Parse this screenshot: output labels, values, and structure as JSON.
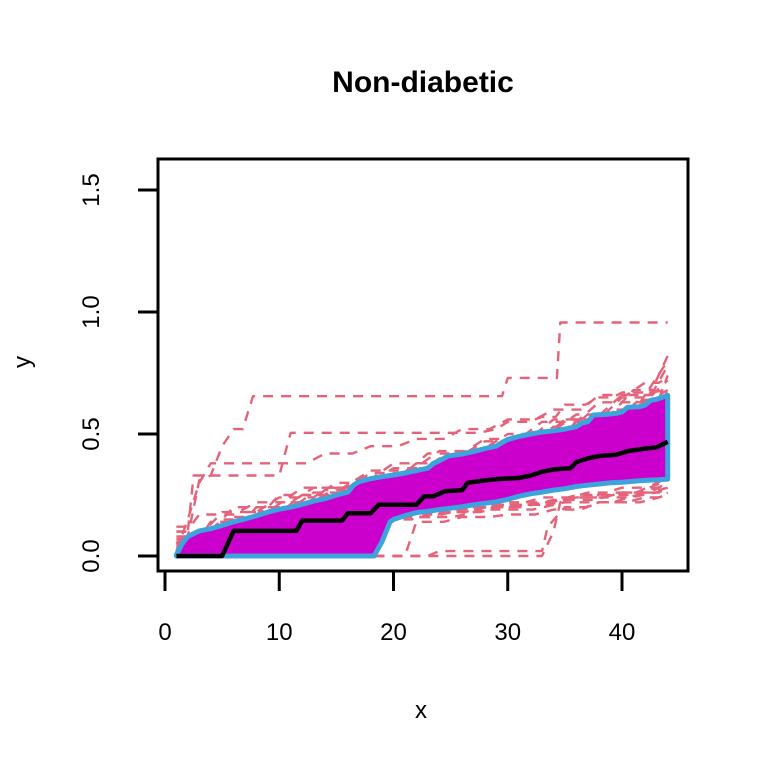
{
  "title": "Non-diabetic",
  "axes": {
    "x": {
      "label": "x",
      "tick_labels": [
        "0",
        "10",
        "20",
        "30",
        "40"
      ]
    },
    "y": {
      "label": "y",
      "tick_labels": [
        "0.0",
        "0.5",
        "1.0",
        "1.5"
      ]
    }
  },
  "colors": {
    "background": "#FFFFFF",
    "axis": "#000000",
    "band_fill": "#CC00CC",
    "band_border": "#3CA3DC",
    "central_curve": "#000000",
    "trajectory": "#E5637A"
  },
  "chart_data": {
    "type": "line",
    "title": "Non-diabetic",
    "xlabel": "x",
    "ylabel": "y",
    "xlim": [
      -0.6,
      45.8
    ],
    "ylim": [
      -0.06,
      1.63
    ],
    "x_ticks": [
      0,
      10,
      20,
      30,
      40
    ],
    "y_ticks": [
      0,
      0.5,
      1.0,
      1.5
    ],
    "x_tick_labels": [
      "0",
      "10",
      "20",
      "30",
      "40"
    ],
    "y_tick_labels": [
      "0.0",
      "0.5",
      "1.0",
      "1.5"
    ],
    "grid": false,
    "legend": "none",
    "band": {
      "label": "central-band",
      "fill": "#CC00CC",
      "border": "#3CA3DC",
      "upper": [
        [
          1,
          0.005
        ],
        [
          1.5,
          0.05
        ],
        [
          2,
          0.08
        ],
        [
          3,
          0.103
        ],
        [
          4,
          0.112
        ],
        [
          5,
          0.125
        ],
        [
          6,
          0.14
        ],
        [
          7,
          0.152
        ],
        [
          8,
          0.165
        ],
        [
          9,
          0.18
        ],
        [
          10,
          0.192
        ],
        [
          11,
          0.2
        ],
        [
          12,
          0.212
        ],
        [
          13,
          0.225
        ],
        [
          14,
          0.235
        ],
        [
          15,
          0.25
        ],
        [
          16,
          0.262
        ],
        [
          16.5,
          0.29
        ],
        [
          17,
          0.305
        ],
        [
          18,
          0.317
        ],
        [
          19,
          0.325
        ],
        [
          20,
          0.332
        ],
        [
          21,
          0.34
        ],
        [
          22,
          0.35
        ],
        [
          23,
          0.36
        ],
        [
          23.5,
          0.38
        ],
        [
          24,
          0.39
        ],
        [
          24.8,
          0.41
        ],
        [
          26,
          0.418
        ],
        [
          27,
          0.428
        ],
        [
          28,
          0.44
        ],
        [
          29,
          0.45
        ],
        [
          29.5,
          0.465
        ],
        [
          30,
          0.478
        ],
        [
          31,
          0.49
        ],
        [
          32,
          0.5
        ],
        [
          33,
          0.508
        ],
        [
          34,
          0.513
        ],
        [
          35,
          0.52
        ],
        [
          36,
          0.53
        ],
        [
          36.5,
          0.545
        ],
        [
          37,
          0.55
        ],
        [
          37.5,
          0.578
        ],
        [
          38.5,
          0.58
        ],
        [
          39.5,
          0.585
        ],
        [
          40,
          0.59
        ],
        [
          40.5,
          0.61
        ],
        [
          41.5,
          0.612
        ],
        [
          42,
          0.618
        ],
        [
          42.5,
          0.638
        ],
        [
          43,
          0.642
        ],
        [
          44,
          0.658
        ]
      ],
      "lower": [
        [
          1,
          0
        ],
        [
          18.3,
          0
        ],
        [
          19,
          0.06
        ],
        [
          19.7,
          0.14
        ],
        [
          20,
          0.15
        ],
        [
          21,
          0.165
        ],
        [
          22,
          0.178
        ],
        [
          23,
          0.183
        ],
        [
          24,
          0.19
        ],
        [
          25,
          0.196
        ],
        [
          26,
          0.202
        ],
        [
          27,
          0.21
        ],
        [
          28,
          0.216
        ],
        [
          29,
          0.222
        ],
        [
          30,
          0.232
        ],
        [
          31,
          0.245
        ],
        [
          32,
          0.255
        ],
        [
          33,
          0.262
        ],
        [
          34,
          0.27
        ],
        [
          35,
          0.276
        ],
        [
          36,
          0.285
        ],
        [
          37,
          0.29
        ],
        [
          38,
          0.295
        ],
        [
          39,
          0.3
        ],
        [
          40,
          0.302
        ],
        [
          41,
          0.306
        ],
        [
          42,
          0.31
        ],
        [
          43,
          0.312
        ],
        [
          44,
          0.315
        ]
      ]
    },
    "central_curve": {
      "label": "central-median-curve",
      "color": "#000000",
      "points": [
        [
          1,
          0
        ],
        [
          5,
          0
        ],
        [
          6,
          0.103
        ],
        [
          11.5,
          0.103
        ],
        [
          12,
          0.145
        ],
        [
          15.5,
          0.145
        ],
        [
          16,
          0.175
        ],
        [
          18,
          0.175
        ],
        [
          18.7,
          0.21
        ],
        [
          22,
          0.21
        ],
        [
          22.7,
          0.245
        ],
        [
          23.5,
          0.245
        ],
        [
          24.5,
          0.265
        ],
        [
          26,
          0.27
        ],
        [
          26.5,
          0.3
        ],
        [
          28,
          0.31
        ],
        [
          29,
          0.315
        ],
        [
          31,
          0.32
        ],
        [
          32,
          0.33
        ],
        [
          33,
          0.345
        ],
        [
          34,
          0.355
        ],
        [
          35.5,
          0.36
        ],
        [
          36,
          0.385
        ],
        [
          37,
          0.4
        ],
        [
          38,
          0.41
        ],
        [
          39.5,
          0.415
        ],
        [
          40.5,
          0.43
        ],
        [
          42,
          0.44
        ],
        [
          43,
          0.445
        ],
        [
          44,
          0.468
        ]
      ]
    },
    "trajectories": {
      "label": "sample-trajectories",
      "color": "#E5637A",
      "style": "dashed",
      "lines": [
        [
          [
            1,
            0
          ],
          [
            2,
            0.08
          ],
          [
            3,
            0.31
          ],
          [
            4,
            0.33
          ],
          [
            5,
            0.45
          ],
          [
            6,
            0.52
          ],
          [
            6.8,
            0.52
          ],
          [
            7.7,
            0.655
          ],
          [
            29.5,
            0.655
          ],
          [
            30,
            0.73
          ],
          [
            34.3,
            0.73
          ],
          [
            34.6,
            0.957
          ],
          [
            44,
            0.957
          ]
        ],
        [
          [
            1,
            0.05
          ],
          [
            2,
            0.1
          ],
          [
            2.5,
            0.33
          ],
          [
            10,
            0.33
          ],
          [
            10.5,
            0.42
          ],
          [
            11,
            0.505
          ],
          [
            27.5,
            0.505
          ],
          [
            29,
            0.52
          ],
          [
            30,
            0.55
          ],
          [
            33,
            0.57
          ],
          [
            35,
            0.62
          ],
          [
            38,
            0.65
          ],
          [
            40,
            0.67
          ],
          [
            44,
            0.68
          ]
        ],
        [
          [
            1,
            0.02
          ],
          [
            2,
            0.15
          ],
          [
            3,
            0.3
          ],
          [
            4,
            0.38
          ],
          [
            10,
            0.38
          ],
          [
            14,
            0.42
          ],
          [
            18,
            0.45
          ],
          [
            22,
            0.48
          ],
          [
            26,
            0.52
          ],
          [
            30,
            0.56
          ],
          [
            34,
            0.6
          ],
          [
            38,
            0.66
          ],
          [
            42,
            0.71
          ],
          [
            44,
            0.73
          ]
        ],
        [
          [
            1,
            0
          ],
          [
            21,
            0
          ],
          [
            22,
            0.14
          ],
          [
            26,
            0.16
          ],
          [
            30,
            0.17
          ],
          [
            34,
            0.19
          ],
          [
            38,
            0.22
          ],
          [
            44,
            0.25
          ]
        ],
        [
          [
            1,
            0
          ],
          [
            33,
            0
          ],
          [
            34,
            0.1
          ],
          [
            34.6,
            0.22
          ],
          [
            36,
            0.24
          ],
          [
            40,
            0.26
          ],
          [
            44,
            0.28
          ]
        ],
        [
          [
            1,
            0
          ],
          [
            23,
            0
          ],
          [
            24,
            0.02
          ],
          [
            33,
            0.02
          ],
          [
            33.5,
            0.12
          ],
          [
            35,
            0.2
          ],
          [
            38,
            0.22
          ],
          [
            42,
            0.24
          ],
          [
            44,
            0.26
          ]
        ],
        [
          [
            1,
            0.1
          ],
          [
            5,
            0.18
          ],
          [
            10,
            0.24
          ],
          [
            15,
            0.3
          ],
          [
            20,
            0.36
          ],
          [
            25,
            0.42
          ],
          [
            30,
            0.48
          ],
          [
            35,
            0.56
          ],
          [
            40,
            0.65
          ],
          [
            44,
            0.72
          ]
        ],
        [
          [
            1,
            0.06
          ],
          [
            4,
            0.14
          ],
          [
            9,
            0.2
          ],
          [
            14,
            0.27
          ],
          [
            19,
            0.33
          ],
          [
            24,
            0.4
          ],
          [
            29,
            0.46
          ],
          [
            34,
            0.53
          ],
          [
            39,
            0.6
          ],
          [
            44,
            0.67
          ]
        ],
        [
          [
            1,
            0.12
          ],
          [
            3,
            0.17
          ],
          [
            8,
            0.22
          ],
          [
            13,
            0.28
          ],
          [
            18,
            0.34
          ],
          [
            23,
            0.42
          ],
          [
            28,
            0.48
          ],
          [
            33,
            0.55
          ],
          [
            38,
            0.63
          ],
          [
            44,
            0.8
          ]
        ],
        [
          [
            1,
            0.04
          ],
          [
            6,
            0.16
          ],
          [
            12,
            0.25
          ],
          [
            17,
            0.31
          ],
          [
            22,
            0.38
          ],
          [
            27,
            0.44
          ],
          [
            32,
            0.5
          ],
          [
            37,
            0.58
          ],
          [
            42,
            0.66
          ],
          [
            44,
            0.68
          ]
        ],
        [
          [
            1,
            0.08
          ],
          [
            5,
            0.15
          ],
          [
            11,
            0.22
          ],
          [
            16,
            0.29
          ],
          [
            21,
            0.35
          ],
          [
            26,
            0.41
          ],
          [
            31,
            0.47
          ],
          [
            36,
            0.55
          ],
          [
            41,
            0.63
          ],
          [
            44,
            0.66
          ]
        ],
        [
          [
            1,
            0.02
          ],
          [
            7,
            0.18
          ],
          [
            13,
            0.26
          ],
          [
            19,
            0.32
          ],
          [
            25,
            0.39
          ],
          [
            31,
            0.46
          ],
          [
            37,
            0.56
          ],
          [
            42,
            0.64
          ],
          [
            44,
            0.74
          ]
        ],
        [
          [
            1,
            0.1
          ],
          [
            6,
            0.2
          ],
          [
            12,
            0.28
          ],
          [
            18,
            0.35
          ],
          [
            24,
            0.43
          ],
          [
            30,
            0.5
          ],
          [
            36,
            0.58
          ],
          [
            41,
            0.68
          ],
          [
            44,
            0.78
          ]
        ],
        [
          [
            1,
            0.05
          ],
          [
            8,
            0.2
          ],
          [
            15,
            0.28
          ],
          [
            22,
            0.36
          ],
          [
            29,
            0.45
          ],
          [
            35,
            0.52
          ],
          [
            40,
            0.6
          ],
          [
            44,
            0.63
          ]
        ],
        [
          [
            1,
            0.07
          ],
          [
            10,
            0.25
          ],
          [
            20,
            0.38
          ],
          [
            28,
            0.47
          ],
          [
            34,
            0.56
          ],
          [
            40,
            0.66
          ],
          [
            44,
            0.82
          ]
        ],
        [
          [
            1,
            0.03
          ],
          [
            5,
            0.12
          ],
          [
            10,
            0.2
          ],
          [
            16,
            0.27
          ],
          [
            22,
            0.34
          ],
          [
            28,
            0.42
          ],
          [
            34,
            0.5
          ],
          [
            40,
            0.58
          ],
          [
            44,
            0.62
          ]
        ],
        [
          [
            1,
            0.02
          ],
          [
            6,
            0.08
          ],
          [
            12,
            0.12
          ],
          [
            18,
            0.15
          ],
          [
            24,
            0.18
          ],
          [
            30,
            0.21
          ],
          [
            36,
            0.24
          ],
          [
            44,
            0.27
          ]
        ],
        [
          [
            1,
            0.04
          ],
          [
            7,
            0.1
          ],
          [
            14,
            0.14
          ],
          [
            20,
            0.17
          ],
          [
            27,
            0.2
          ],
          [
            34,
            0.23
          ],
          [
            40,
            0.26
          ],
          [
            44,
            0.3
          ]
        ],
        [
          [
            1,
            0
          ],
          [
            8,
            0.09
          ],
          [
            15,
            0.13
          ],
          [
            21,
            0.16
          ],
          [
            28,
            0.19
          ],
          [
            35,
            0.22
          ],
          [
            42,
            0.26
          ],
          [
            44,
            0.26
          ]
        ],
        [
          [
            1,
            0.05
          ],
          [
            9,
            0.12
          ],
          [
            16,
            0.15
          ],
          [
            22,
            0.18
          ],
          [
            29,
            0.21
          ],
          [
            36,
            0.25
          ],
          [
            44,
            0.32
          ]
        ],
        [
          [
            1,
            0.03
          ],
          [
            10,
            0.13
          ],
          [
            17,
            0.16
          ],
          [
            23,
            0.19
          ],
          [
            30,
            0.22
          ],
          [
            37,
            0.26
          ],
          [
            44,
            0.29
          ]
        ],
        [
          [
            1,
            0.01
          ],
          [
            5,
            0.06
          ],
          [
            13,
            0.12
          ],
          [
            19,
            0.16
          ],
          [
            26,
            0.2
          ],
          [
            33,
            0.24
          ],
          [
            40,
            0.28
          ],
          [
            44,
            0.31
          ]
        ]
      ]
    }
  }
}
